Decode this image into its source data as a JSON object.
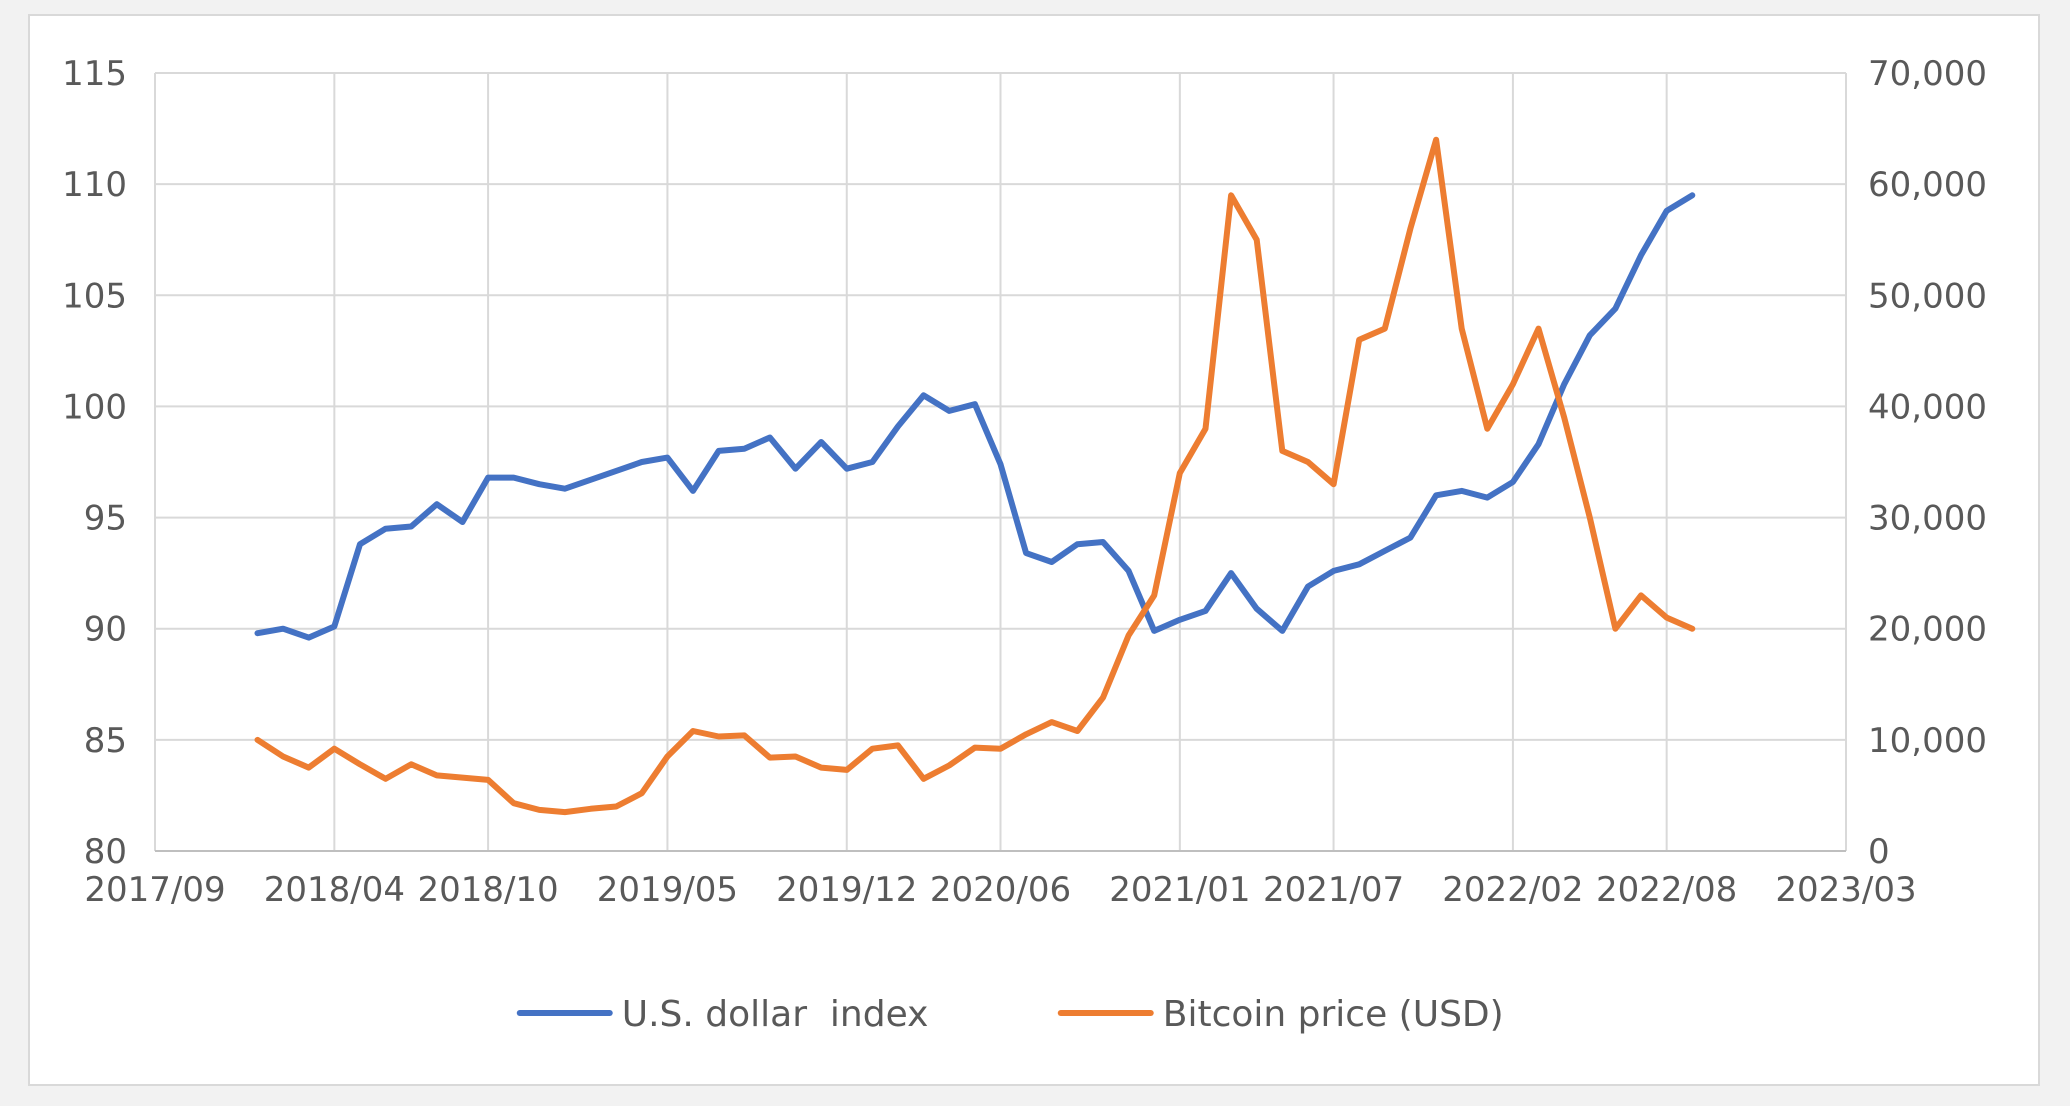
{
  "chart_data": {
    "type": "line",
    "title": "",
    "xlabel": "",
    "ylabel": "",
    "y2label": "",
    "grid": true,
    "legend_position": "bottom",
    "x_tick_labels": [
      "2017/09",
      "2018/04",
      "2018/10",
      "2019/05",
      "2019/12",
      "2020/06",
      "2021/01",
      "2021/07",
      "2022/02",
      "2022/08",
      "2023/03"
    ],
    "x_range": [
      "2017/09",
      "2023/03"
    ],
    "ylim_left": [
      80,
      115
    ],
    "yticks_left": [
      "80",
      "85",
      "90",
      "95",
      "100",
      "105",
      "110",
      "115"
    ],
    "ylim_right": [
      0,
      70000
    ],
    "yticks_right": [
      "0",
      "10,000",
      "20,000",
      "30,000",
      "40,000",
      "50,000",
      "60,000",
      "70,000"
    ],
    "series": [
      {
        "name": "U.S. dollar  index",
        "axis": "left",
        "color": "#4472c4",
        "x": [
          "2018/01",
          "2018/02",
          "2018/03",
          "2018/04",
          "2018/05",
          "2018/06",
          "2018/07",
          "2018/08",
          "2018/09",
          "2018/10",
          "2018/11",
          "2018/12",
          "2019/01",
          "2019/02",
          "2019/03",
          "2019/04",
          "2019/05",
          "2019/06",
          "2019/07",
          "2019/08",
          "2019/09",
          "2019/10",
          "2019/11",
          "2019/12",
          "2020/01",
          "2020/02",
          "2020/03",
          "2020/04",
          "2020/05",
          "2020/06",
          "2020/07",
          "2020/08",
          "2020/09",
          "2020/10",
          "2020/11",
          "2020/12",
          "2021/01",
          "2021/02",
          "2021/03",
          "2021/04",
          "2021/05",
          "2021/06",
          "2021/07",
          "2021/08",
          "2021/09",
          "2021/10",
          "2021/11",
          "2021/12",
          "2022/01",
          "2022/02",
          "2022/03",
          "2022/04",
          "2022/05",
          "2022/06",
          "2022/07",
          "2022/08",
          "2022/09"
        ],
        "values": [
          89.8,
          90.0,
          89.6,
          90.1,
          93.8,
          94.5,
          94.6,
          95.6,
          94.8,
          96.8,
          96.8,
          96.5,
          96.3,
          96.7,
          97.1,
          97.5,
          97.7,
          96.2,
          98.0,
          98.1,
          98.6,
          97.2,
          98.4,
          97.2,
          97.5,
          99.1,
          100.5,
          99.8,
          100.1,
          97.4,
          93.4,
          93.0,
          93.8,
          93.9,
          92.6,
          89.9,
          90.4,
          90.8,
          92.5,
          90.9,
          89.9,
          91.9,
          92.6,
          92.9,
          93.5,
          94.1,
          96.0,
          96.2,
          95.9,
          96.6,
          98.3,
          101.0,
          103.2,
          104.4,
          106.8,
          108.8,
          109.5
        ]
      },
      {
        "name": "Bitcoin price (USD)",
        "axis": "right",
        "color": "#ed7d31",
        "x": [
          "2018/01",
          "2018/02",
          "2018/03",
          "2018/04",
          "2018/05",
          "2018/06",
          "2018/07",
          "2018/08",
          "2018/09",
          "2018/10",
          "2018/11",
          "2018/12",
          "2019/01",
          "2019/02",
          "2019/03",
          "2019/04",
          "2019/05",
          "2019/06",
          "2019/07",
          "2019/08",
          "2019/09",
          "2019/10",
          "2019/11",
          "2019/12",
          "2020/01",
          "2020/02",
          "2020/03",
          "2020/04",
          "2020/05",
          "2020/06",
          "2020/07",
          "2020/08",
          "2020/09",
          "2020/10",
          "2020/11",
          "2020/12",
          "2021/01",
          "2021/02",
          "2021/03",
          "2021/04",
          "2021/05",
          "2021/06",
          "2021/07",
          "2021/08",
          "2021/09",
          "2021/10",
          "2021/11",
          "2021/12",
          "2022/01",
          "2022/02",
          "2022/03",
          "2022/04",
          "2022/05",
          "2022/06",
          "2022/07",
          "2022/08",
          "2022/09"
        ],
        "values": [
          10000,
          8500,
          7500,
          9200,
          7800,
          6500,
          7800,
          6800,
          6600,
          6400,
          4300,
          3700,
          3500,
          3800,
          4000,
          5200,
          8500,
          10800,
          10300,
          10400,
          8400,
          8500,
          7500,
          7300,
          9200,
          9500,
          6500,
          7700,
          9300,
          9200,
          10500,
          11600,
          10800,
          13800,
          19400,
          23000,
          34000,
          38000,
          59000,
          55000,
          36000,
          35000,
          33000,
          46000,
          47000,
          56000,
          64000,
          47000,
          38000,
          42000,
          47000,
          39000,
          30000,
          20000,
          23000,
          21000,
          20000
        ]
      }
    ]
  }
}
